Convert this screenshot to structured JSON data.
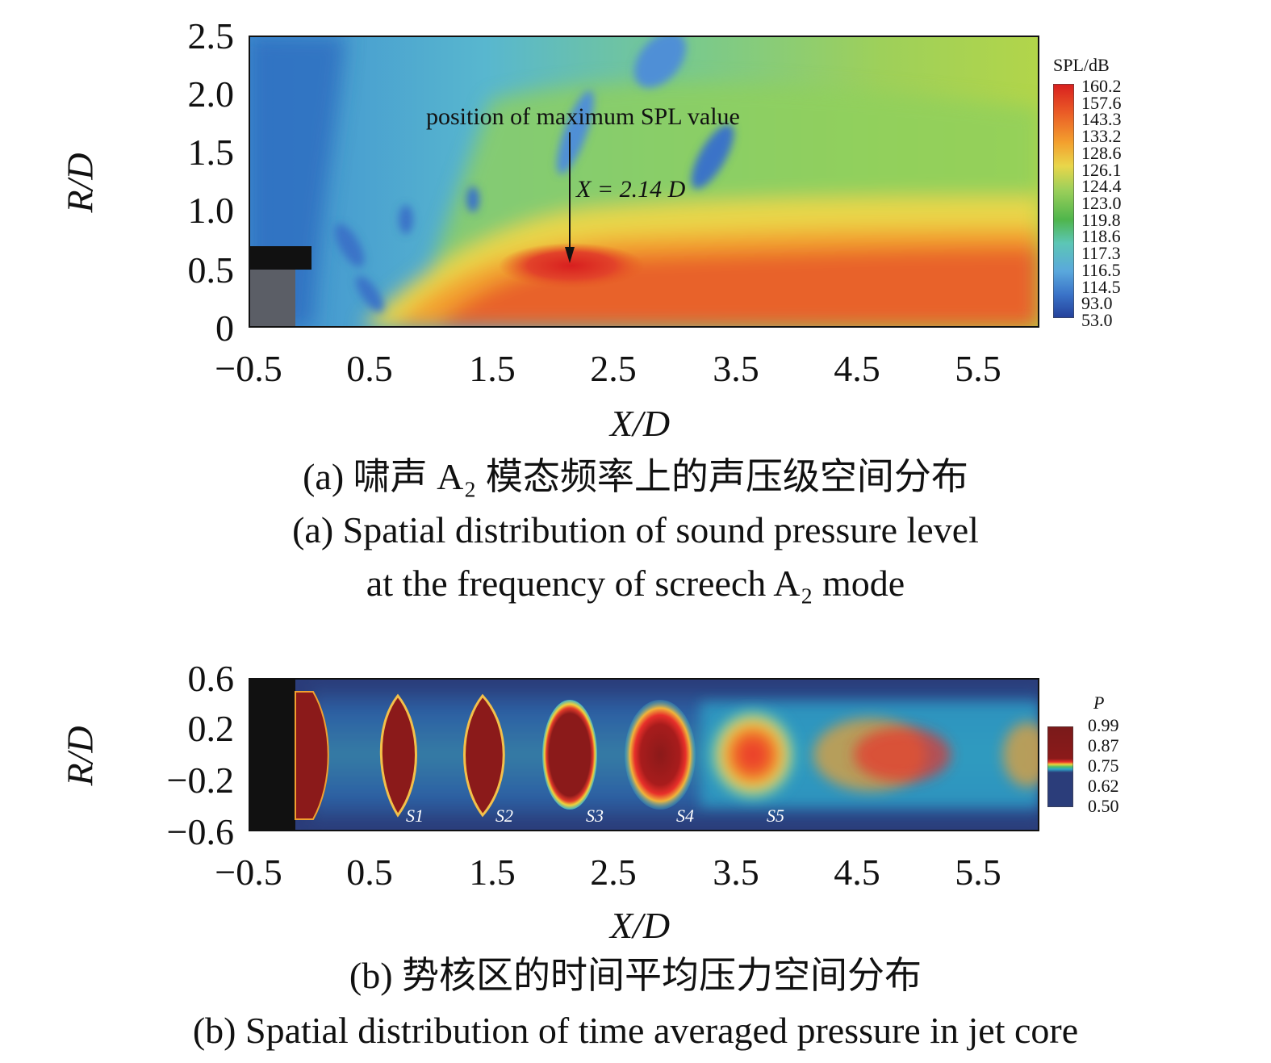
{
  "figure_a": {
    "ylabel": "R/D",
    "xlabel": "X/D",
    "yticks": [
      "2.5",
      "2.0",
      "1.5",
      "1.0",
      "0.5",
      "0"
    ],
    "xticks": [
      "−0.5",
      "0.5",
      "1.5",
      "2.5",
      "3.5",
      "4.5",
      "5.5"
    ],
    "annotation": "position of maximum SPL value",
    "annotation_x": "X = 2.14 D",
    "colorbar_title": "SPL/dB",
    "colorbar_levels": [
      "160.2",
      "157.6",
      "143.3",
      "133.2",
      "128.6",
      "126.1",
      "124.4",
      "123.0",
      "119.8",
      "118.6",
      "117.3",
      "116.5",
      "114.5",
      "93.0",
      "53.0"
    ],
    "caption_cn": "(a) 啸声 A₂ 模态频率上的声压级空间分布",
    "caption_en_1": "(a) Spatial distribution of sound pressure level",
    "caption_en_2": "at the frequency of screech A₂ mode"
  },
  "figure_b": {
    "ylabel": "R/D",
    "xlabel": "X/D",
    "yticks": [
      "0.6",
      "0.2",
      "−0.2",
      "−0.6"
    ],
    "xticks": [
      "−0.5",
      "0.5",
      "1.5",
      "2.5",
      "3.5",
      "4.5",
      "5.5"
    ],
    "colorbar_title": "P",
    "colorbar_levels": [
      "0.99",
      "0.87",
      "0.75",
      "0.62",
      "0.50"
    ],
    "shock_labels": [
      "S1",
      "S2",
      "S3",
      "S4",
      "S5"
    ],
    "caption_cn": "(b) 势核区的时间平均压力空间分布",
    "caption_en": "(b) Spatial distribution of time averaged pressure in jet core"
  },
  "colors": {
    "background_a": "#6fc4ad",
    "hot_a": "#e65a22",
    "background_b": "#2b3d7a",
    "core_b": "#8b1a1a",
    "nozzle": "#111111"
  },
  "chart_data": [
    {
      "type": "heatmap",
      "title": "",
      "xlabel": "X/D",
      "ylabel": "R/D",
      "xlim": [
        -0.5,
        6.0
      ],
      "ylim": [
        0,
        2.5
      ],
      "colorbar_label": "SPL/dB",
      "colorbar_range": [
        53.0,
        160.2
      ],
      "annotations": [
        {
          "text": "position of maximum SPL value",
          "x": 2.14,
          "y": 0.55
        },
        {
          "text": "X = 2.14 D",
          "x": 2.14
        }
      ]
    },
    {
      "type": "heatmap",
      "title": "",
      "xlabel": "X/D",
      "ylabel": "R/D",
      "xlim": [
        -0.5,
        6.0
      ],
      "ylim": [
        -0.6,
        0.6
      ],
      "colorbar_label": "P",
      "colorbar_range": [
        0.5,
        0.99
      ],
      "shock_cells": [
        {
          "label": "S1",
          "x": 0.72
        },
        {
          "label": "S2",
          "x": 1.42
        },
        {
          "label": "S3",
          "x": 2.1
        },
        {
          "label": "S4",
          "x": 2.85
        },
        {
          "label": "S5",
          "x": 3.65
        }
      ]
    }
  ]
}
